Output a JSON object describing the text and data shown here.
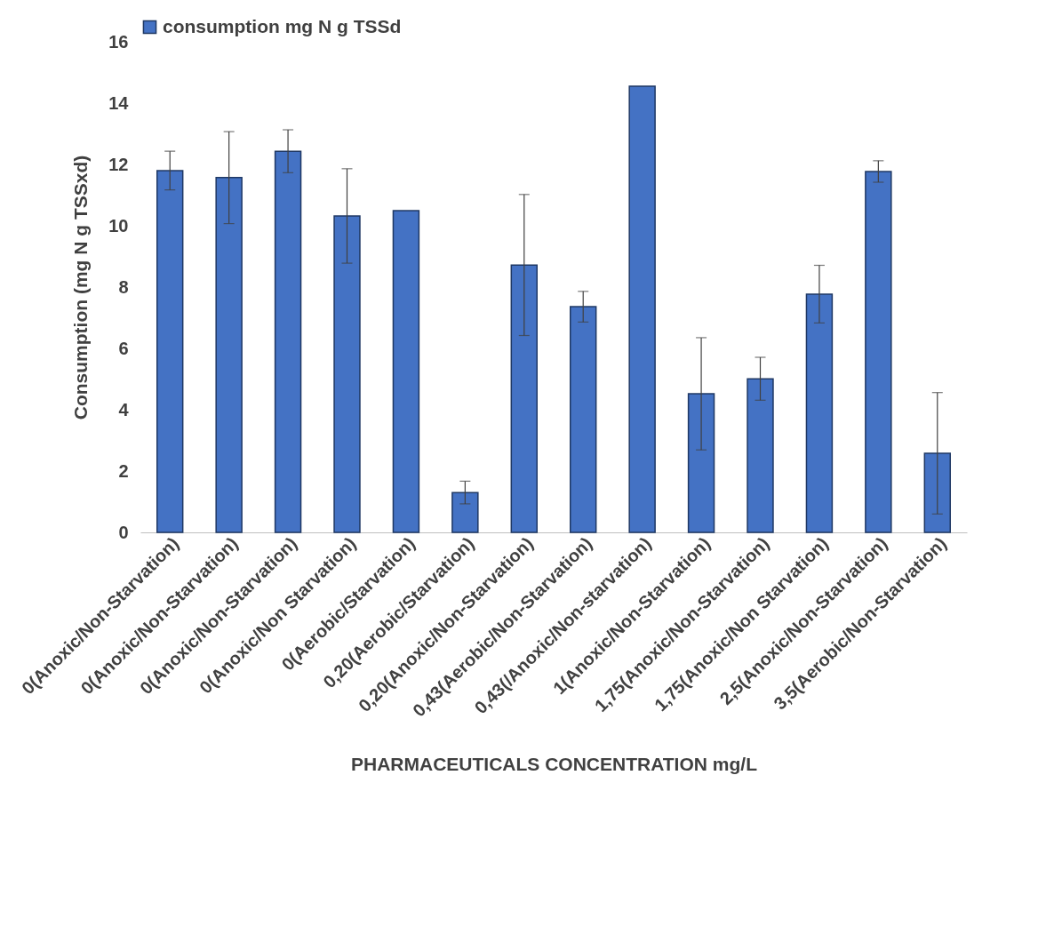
{
  "chart_data": {
    "type": "bar",
    "xlabel": "PHARMACEUTICALS CONCENTRATION mg/L",
    "ylabel": "Consumption (mg N g TSSxd)",
    "categories": [
      "0(Anoxic/Non-Starvation)",
      "0(Anoxic/Non-Starvation)",
      "0(Anoxic/Non-Starvation)",
      "0(Anoxic/Non Starvation)",
      "0(Aerobic/Starvation)",
      "0,20(Aerobic/Starvation)",
      "0,20(Anoxic/Non-Starvation)",
      "0,43(Aerobic/Non-Starvation)",
      "0,43(/Anoxic/Non-starvation)",
      "1(Anoxic/Non-Starvation)",
      "1,75(Anoxic/Non-Starvation)",
      "1,75(Anoxic/Non Starvation)",
      "2,5(Anoxic/Non-Starvation)",
      "3,5(Aerobic/Non-Starvation)"
    ],
    "series": [
      {
        "name": "consumption mg N g TSSd",
        "color": "#4472c4",
        "values": [
          11.8,
          11.57,
          12.43,
          10.32,
          10.49,
          1.3,
          8.72,
          7.36,
          14.55,
          4.52,
          5.01,
          7.77,
          11.77,
          2.58
        ],
        "errors": [
          0.63,
          1.5,
          0.7,
          1.54,
          null,
          0.37,
          2.3,
          0.5,
          null,
          1.83,
          0.7,
          0.94,
          0.35,
          1.98
        ]
      }
    ],
    "ylim": [
      0,
      16
    ],
    "yticks": [
      0,
      2,
      4,
      6,
      8,
      10,
      12,
      14,
      16
    ],
    "grid": false,
    "legend": "top"
  }
}
